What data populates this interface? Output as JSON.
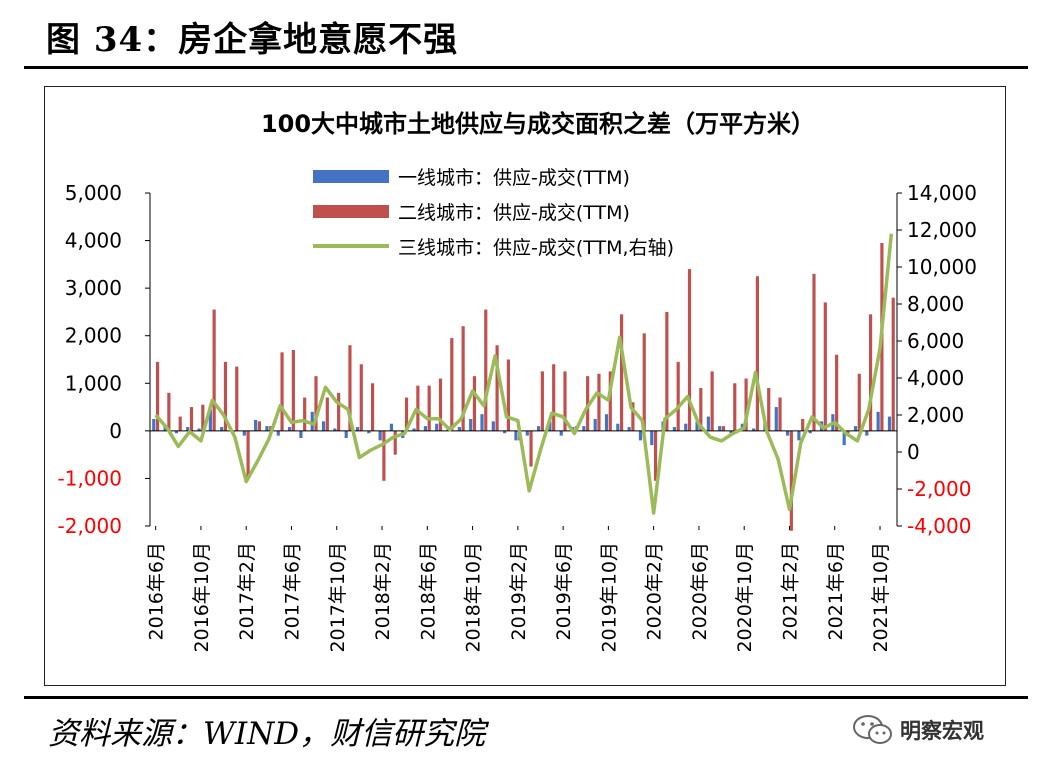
{
  "figure": {
    "title": "图 34：房企拿地意愿不强",
    "source": "资料来源：WIND，财信研究院",
    "watermark": "明察宏观",
    "watermark_icon": "wechat-icon"
  },
  "colors": {
    "tier1": "#4472C4",
    "tier2": "#C0504D",
    "tier3": "#9BBB59",
    "negative_tick": "#FF0000"
  },
  "chart_data": {
    "type": "bar",
    "title": "100大中城市土地供应与成交面积之差（万平方米）",
    "legend_placement": "top",
    "grid": false,
    "ylim": [
      -2000,
      5000
    ],
    "y_ticks": [
      {
        "value": -2000,
        "label": "-2,000"
      },
      {
        "value": -1000,
        "label": "-1,000"
      },
      {
        "value": 0,
        "label": "0"
      },
      {
        "value": 1000,
        "label": "1,000"
      },
      {
        "value": 2000,
        "label": "2,000"
      },
      {
        "value": 3000,
        "label": "3,000"
      },
      {
        "value": 4000,
        "label": "4,000"
      },
      {
        "value": 5000,
        "label": "5,000"
      }
    ],
    "y2lim": [
      -4000,
      14000
    ],
    "y2_ticks": [
      {
        "value": -4000,
        "label": "-4,000"
      },
      {
        "value": -2000,
        "label": "-2,000"
      },
      {
        "value": 0,
        "label": "0"
      },
      {
        "value": 2000,
        "label": "2,000"
      },
      {
        "value": 4000,
        "label": "4,000"
      },
      {
        "value": 6000,
        "label": "6,000"
      },
      {
        "value": 8000,
        "label": "8,000"
      },
      {
        "value": 10000,
        "label": "10,000"
      },
      {
        "value": 12000,
        "label": "12,000"
      },
      {
        "value": 14000,
        "label": "14,000"
      }
    ],
    "x_tick_labels": [
      {
        "index": 0,
        "label": "2016年6月"
      },
      {
        "index": 4,
        "label": "2016年10月"
      },
      {
        "index": 8,
        "label": "2017年2月"
      },
      {
        "index": 12,
        "label": "2017年6月"
      },
      {
        "index": 16,
        "label": "2017年10月"
      },
      {
        "index": 20,
        "label": "2018年2月"
      },
      {
        "index": 24,
        "label": "2018年6月"
      },
      {
        "index": 28,
        "label": "2018年10月"
      },
      {
        "index": 32,
        "label": "2019年2月"
      },
      {
        "index": 36,
        "label": "2019年6月"
      },
      {
        "index": 40,
        "label": "2019年10月"
      },
      {
        "index": 44,
        "label": "2020年2月"
      },
      {
        "index": 48,
        "label": "2020年6月"
      },
      {
        "index": 52,
        "label": "2020年10月"
      },
      {
        "index": 56,
        "label": "2021年2月"
      },
      {
        "index": 60,
        "label": "2021年6月"
      },
      {
        "index": 64,
        "label": "2021年10月"
      }
    ],
    "categories": [
      "2016-06",
      "2016-07",
      "2016-08",
      "2016-09",
      "2016-10",
      "2016-11",
      "2016-12",
      "2017-01",
      "2017-02",
      "2017-03",
      "2017-04",
      "2017-05",
      "2017-06",
      "2017-07",
      "2017-08",
      "2017-09",
      "2017-10",
      "2017-11",
      "2017-12",
      "2018-01",
      "2018-02",
      "2018-03",
      "2018-04",
      "2018-05",
      "2018-06",
      "2018-07",
      "2018-08",
      "2018-09",
      "2018-10",
      "2018-11",
      "2018-12",
      "2019-01",
      "2019-02",
      "2019-03",
      "2019-04",
      "2019-05",
      "2019-06",
      "2019-07",
      "2019-08",
      "2019-09",
      "2019-10",
      "2019-11",
      "2019-12",
      "2020-01",
      "2020-02",
      "2020-03",
      "2020-04",
      "2020-05",
      "2020-06",
      "2020-07",
      "2020-08",
      "2020-09",
      "2020-10",
      "2020-11",
      "2020-12",
      "2021-01",
      "2021-02",
      "2021-03",
      "2021-04",
      "2021-05",
      "2021-06",
      "2021-07",
      "2021-08",
      "2021-09",
      "2021-10",
      "2021-11"
    ],
    "series": [
      {
        "name": "一线城市：供应-成交(TTM)",
        "type": "bar",
        "axis": "left",
        "values": [
          250,
          100,
          -50,
          80,
          50,
          450,
          80,
          -50,
          -100,
          230,
          100,
          -100,
          80,
          -150,
          400,
          200,
          50,
          -150,
          80,
          -50,
          -200,
          150,
          -150,
          50,
          100,
          150,
          100,
          80,
          250,
          350,
          200,
          -50,
          -200,
          -100,
          100,
          200,
          -100,
          80,
          100,
          250,
          350,
          150,
          80,
          -200,
          -300,
          200,
          80,
          150,
          200,
          300,
          100,
          -50,
          150,
          50,
          200,
          500,
          -100,
          -200,
          -50,
          200,
          350,
          -300,
          100,
          -100,
          400,
          300
        ]
      },
      {
        "name": "二线城市：供应-成交(TTM)",
        "type": "bar",
        "axis": "left",
        "values": [
          1450,
          800,
          300,
          500,
          550,
          2550,
          1450,
          1350,
          -1000,
          200,
          100,
          1650,
          1700,
          700,
          1150,
          700,
          800,
          1800,
          1400,
          1000,
          -1050,
          -500,
          700,
          950,
          950,
          1100,
          1950,
          2200,
          1150,
          2550,
          1800,
          1500,
          -200,
          -750,
          1250,
          1400,
          1250,
          100,
          1150,
          1200,
          1250,
          2450,
          600,
          2050,
          -1050,
          2500,
          1450,
          3400,
          900,
          1250,
          100,
          1000,
          1100,
          3250,
          900,
          700,
          -2100,
          250,
          3300,
          2700,
          1600,
          -50,
          1200,
          2450,
          3950,
          2800
        ]
      },
      {
        "name": "三线城市：供应-成交(TTM,右轴)",
        "type": "line",
        "axis": "right",
        "values": [
          2000,
          1300,
          300,
          1100,
          600,
          2800,
          2000,
          800,
          -1600,
          -500,
          700,
          2500,
          1600,
          1700,
          1500,
          3500,
          2700,
          2300,
          -300,
          100,
          400,
          800,
          1000,
          2300,
          1800,
          1800,
          1200,
          1800,
          3300,
          2500,
          5200,
          1900,
          1700,
          -2100,
          100,
          2100,
          1900,
          1000,
          2300,
          3200,
          2800,
          6200,
          2400,
          1700,
          -3300,
          1800,
          2300,
          3000,
          1500,
          800,
          600,
          1000,
          1300,
          4300,
          1100,
          -400,
          -3100,
          500,
          1900,
          1300,
          1600,
          1000,
          600,
          2300,
          5600,
          11800
        ]
      }
    ]
  }
}
